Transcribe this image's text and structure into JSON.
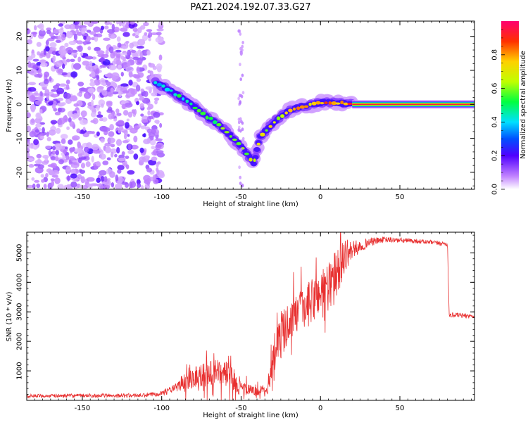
{
  "figure": {
    "title": "PAZ1.2024.192.07.33.G27"
  },
  "chart_data": [
    {
      "type": "heatmap",
      "xlabel": "Height of straight line (km)",
      "ylabel": "Frequency (Hz)",
      "xlim": [
        -185,
        97
      ],
      "ylim": [
        -25,
        24.5
      ],
      "xticks": [
        -150,
        -100,
        -50,
        0,
        50
      ],
      "yticks": [
        -20,
        -10,
        0,
        10,
        20
      ],
      "colorbar": {
        "label": "Normalized spectral amplitude",
        "range": [
          0,
          1
        ],
        "ticks": [
          0.0,
          0.2,
          0.4,
          0.6,
          0.8
        ],
        "colormap": [
          "#ffffff",
          "#c080ff",
          "#5000ff",
          "#0050ff",
          "#00e0ff",
          "#00ff40",
          "#c0ff00",
          "#ffd000",
          "#ff3000",
          "#ff0070"
        ]
      },
      "features": {
        "noise_region_x": [
          -185,
          -100
        ],
        "noise_amplitude": 0.15,
        "ridge_points": [
          [
            -104,
            6.5
          ],
          [
            -96,
            4.5
          ],
          [
            -88,
            2.0
          ],
          [
            -80,
            -0.5
          ],
          [
            -72,
            -3.5
          ],
          [
            -64,
            -6.0
          ],
          [
            -56,
            -9.5
          ],
          [
            -48,
            -13.5
          ],
          [
            -42,
            -17.5
          ],
          [
            -38,
            -9.5
          ],
          [
            -34,
            -7.5
          ],
          [
            -30,
            -5.5
          ],
          [
            -25,
            -3.5
          ],
          [
            -20,
            -2.0
          ],
          [
            -15,
            -1.0
          ],
          [
            -10,
            -0.5
          ],
          [
            -5,
            0.0
          ],
          [
            0,
            0.5
          ],
          [
            5,
            0.7
          ],
          [
            10,
            0.5
          ],
          [
            15,
            0.2
          ],
          [
            20,
            0.0
          ]
        ],
        "constant_line_x": [
          20,
          97
        ],
        "constant_line_y": 0.0,
        "constant_amplitude": 0.95
      }
    },
    {
      "type": "line",
      "xlabel": "Height of straight line (km)",
      "ylabel": "SNR (10 * v/v)",
      "xlim": [
        -185,
        97
      ],
      "ylim": [
        0,
        5700
      ],
      "xticks": [
        -150,
        -100,
        -50,
        0,
        50
      ],
      "yticks": [
        1000,
        2000,
        3000,
        4000,
        5000
      ],
      "series": [
        {
          "color": "#e83030",
          "envelope": [
            [
              -185,
              150,
              60
            ],
            [
              -110,
              170,
              70
            ],
            [
              -100,
              250,
              90
            ],
            [
              -90,
              450,
              150
            ],
            [
              -85,
              700,
              350
            ],
            [
              -80,
              800,
              400
            ],
            [
              -70,
              900,
              450
            ],
            [
              -60,
              950,
              450
            ],
            [
              -55,
              700,
              400
            ],
            [
              -50,
              400,
              250
            ],
            [
              -40,
              300,
              150
            ],
            [
              -33,
              400,
              200
            ],
            [
              -30,
              1500,
              600
            ],
            [
              -25,
              2200,
              800
            ],
            [
              -20,
              2700,
              700
            ],
            [
              -10,
              3100,
              700
            ],
            [
              -5,
              3400,
              800
            ],
            [
              0,
              3700,
              800
            ],
            [
              5,
              3900,
              900
            ],
            [
              10,
              4200,
              900
            ],
            [
              15,
              4900,
              600
            ],
            [
              20,
              5100,
              300
            ],
            [
              30,
              5350,
              150
            ],
            [
              40,
              5450,
              100
            ],
            [
              60,
              5400,
              80
            ],
            [
              80,
              5300,
              80
            ],
            [
              81,
              2900,
              80
            ],
            [
              97,
              2850,
              80
            ]
          ]
        }
      ]
    }
  ]
}
